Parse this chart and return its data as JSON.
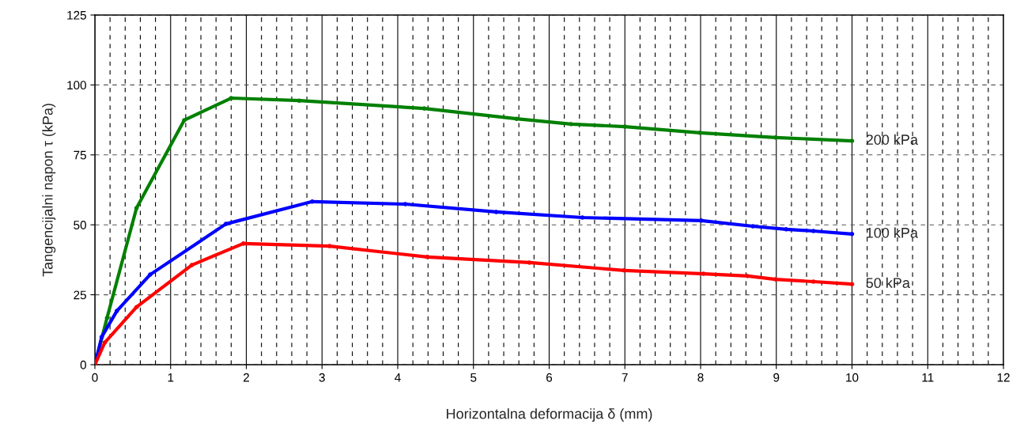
{
  "chart_data": {
    "type": "line",
    "xlabel": "Horizontalna deformacija δ (mm)",
    "ylabel": "Tangencijalni napon τ (kPa)",
    "xlim": [
      0,
      12
    ],
    "xticks": [
      0,
      1,
      2,
      3,
      4,
      5,
      6,
      7,
      8,
      9,
      10,
      11,
      12
    ],
    "ylim": [
      0,
      125
    ],
    "yticks": [
      0,
      25,
      50,
      75,
      100,
      125
    ],
    "grid": true,
    "marker": "circle",
    "line_style": "solid",
    "legend": false,
    "series": [
      {
        "name": "200 kPa",
        "color": "#008000",
        "x": [
          0,
          0.16,
          0.55,
          1.18,
          1.8,
          2.7,
          4.35,
          5.57,
          6.29,
          7.0,
          7.99,
          8.99,
          10.0
        ],
        "values": [
          0,
          16.7,
          56,
          87.4,
          95.3,
          94.4,
          91.6,
          87.9,
          86,
          85.1,
          82.9,
          81.2,
          80
        ]
      },
      {
        "name": "100 kPa",
        "color": "#0000ff",
        "x": [
          0,
          0.09,
          0.29,
          0.73,
          1.73,
          2.87,
          4.1,
          5.3,
          6.44,
          8.01,
          8.69,
          9.13,
          9.49,
          10.0
        ],
        "values": [
          0,
          9.9,
          19.2,
          32.2,
          50.3,
          58.3,
          57.4,
          54.6,
          52.6,
          51.5,
          49.5,
          48.4,
          47.8,
          46.7
        ]
      },
      {
        "name": "50 kPa",
        "color": "#ff0000",
        "x": [
          0,
          0.13,
          0.55,
          1.28,
          1.96,
          3.1,
          4.39,
          5.74,
          6.99,
          8.04,
          8.62,
          8.99,
          9.49,
          10.0
        ],
        "values": [
          0,
          7.9,
          20.6,
          35.6,
          43.3,
          42.4,
          38.5,
          36.5,
          33.7,
          32.5,
          31.7,
          30.5,
          29.7,
          28.8
        ]
      }
    ]
  }
}
